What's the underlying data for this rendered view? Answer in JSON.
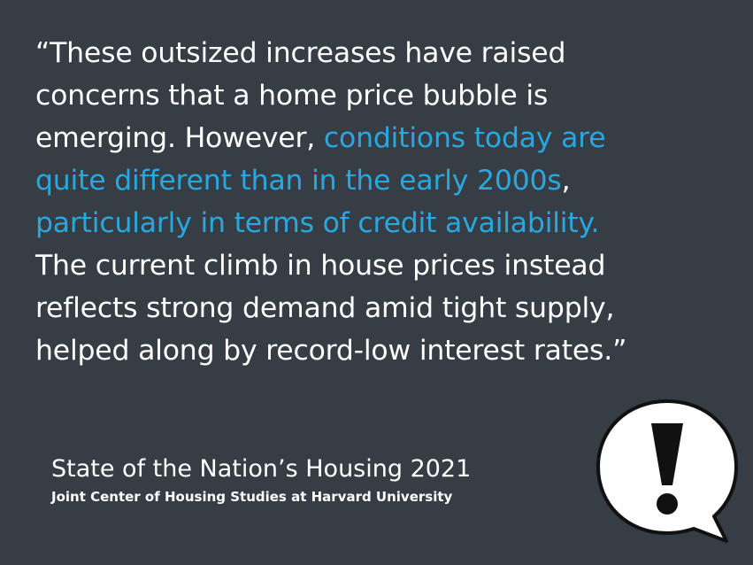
{
  "quote": {
    "lines": [
      [
        {
          "text": "“These outsized increases have raised",
          "highlight": false
        }
      ],
      [
        {
          "text": "concerns that a home price bubble is",
          "highlight": false
        }
      ],
      [
        {
          "text": "emerging. However, ",
          "highlight": false
        },
        {
          "text": "conditions today are",
          "highlight": true
        }
      ],
      [
        {
          "text": "quite different than in the early 2000s",
          "highlight": true
        },
        {
          "text": ",",
          "highlight": false
        }
      ],
      [
        {
          "text": "particularly in terms of credit availability.",
          "highlight": true
        }
      ],
      [
        {
          "text": "The current climb in house prices instead",
          "highlight": false
        }
      ],
      [
        {
          "text": "reflects strong demand amid tight supply,",
          "highlight": false
        }
      ],
      [
        {
          "text": "helped along by record-low interest rates.”",
          "highlight": false
        }
      ]
    ]
  },
  "source": {
    "title": "State of the Nation’s Housing 2021",
    "organization": "Joint Center of Housing Studies at Harvard University"
  },
  "icon": {
    "name": "exclamation-speech-bubble-icon"
  },
  "colors": {
    "background": "#363d45",
    "text": "#ffffff",
    "highlight": "#29a8e0",
    "icon_fill": "#ffffff",
    "icon_stroke": "#111111"
  }
}
